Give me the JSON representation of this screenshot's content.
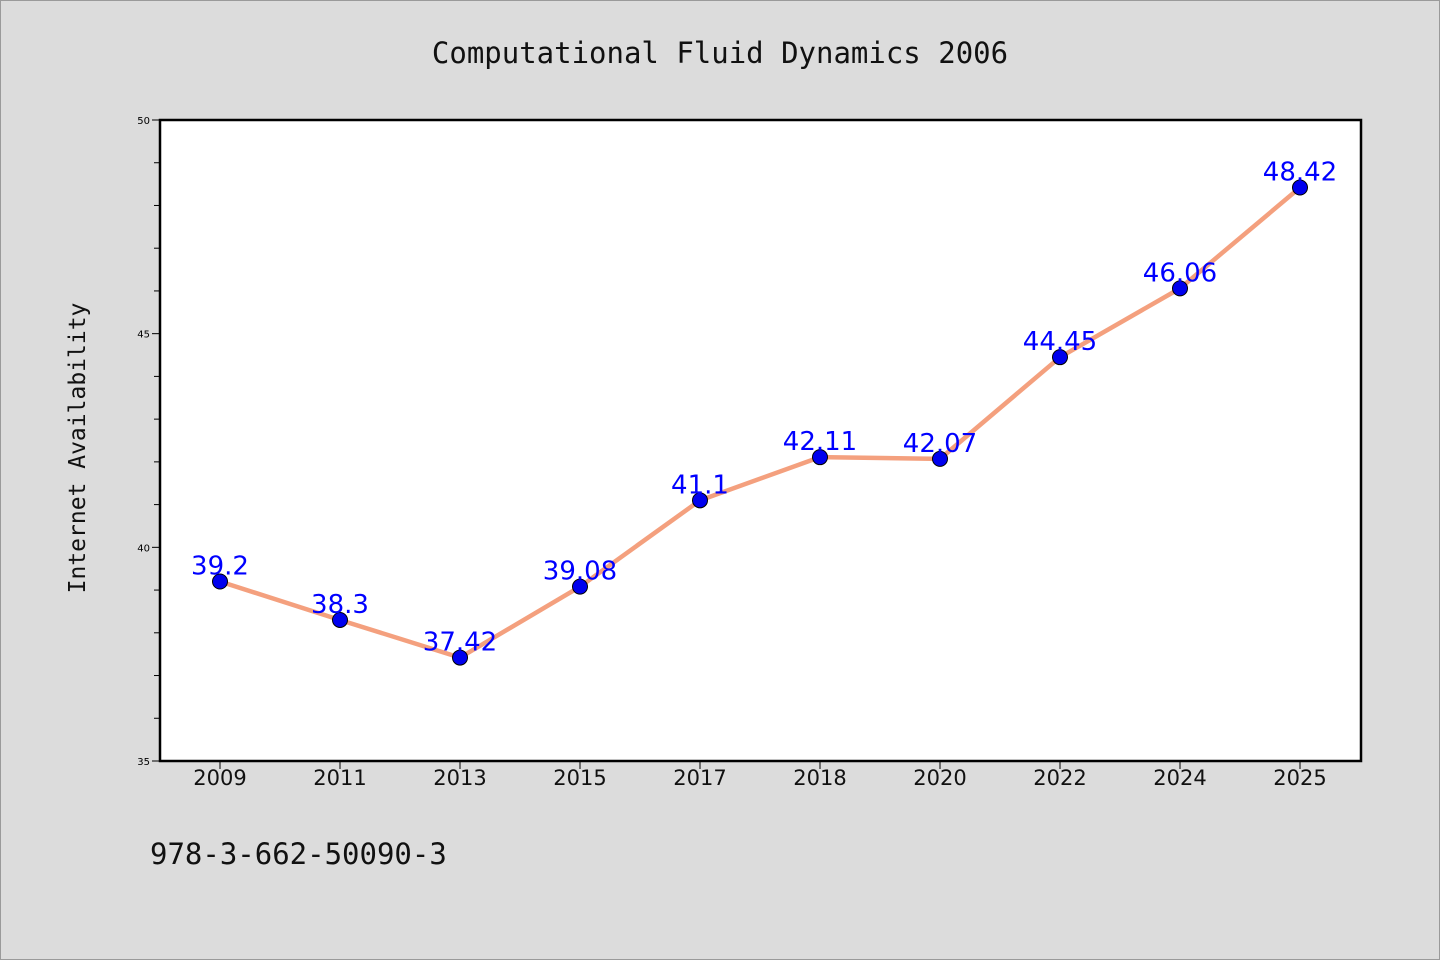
{
  "chart_data": {
    "type": "line",
    "title": "Computational Fluid Dynamics 2006",
    "ylabel": "Internet Availability",
    "xlabel": "",
    "categories": [
      "2009",
      "2011",
      "2013",
      "2015",
      "2017",
      "2018",
      "2020",
      "2022",
      "2024",
      "2025"
    ],
    "series": [
      {
        "values": [
          39.2,
          38.3,
          37.42,
          39.08,
          41.1,
          42.11,
          42.07,
          44.45,
          46.06,
          48.42
        ],
        "labels": [
          "39.2",
          "38.3",
          "37.42",
          "39.08",
          "41.1",
          "42.11",
          "42.07",
          "44.45",
          "46.06",
          "48.42"
        ]
      }
    ],
    "ylim": [
      35,
      50
    ],
    "yticks": [
      35,
      40,
      45,
      50
    ],
    "grid": false,
    "line_color": "#f4a07e",
    "marker_color": "#0000ee",
    "label_color": "#0000ff"
  },
  "footer": {
    "isbn": "978-3-662-50090-3"
  }
}
